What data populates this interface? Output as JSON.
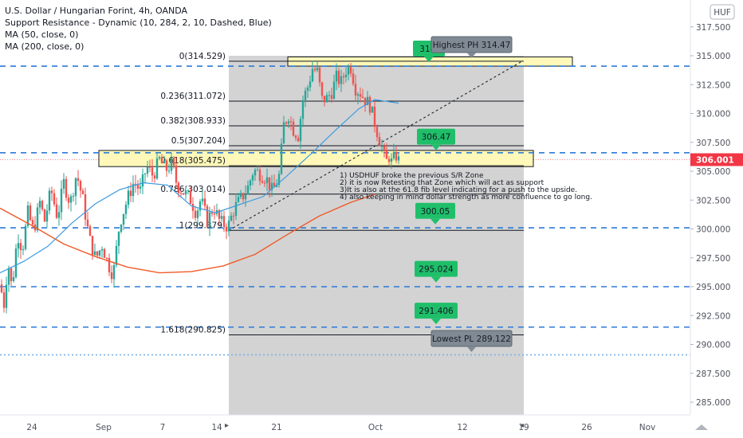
{
  "legend": {
    "title": "U.S. Dollar / Hungarian Forint, 4h, OANDA",
    "indicators": [
      "Support Resistance - Dynamic (10, 284, 2, 10, Dashed, Blue)",
      "MA (50, close, 0)",
      "MA (200, close, 0)"
    ]
  },
  "currency_button": "HUF",
  "price_scale": [
    "317.500",
    "315.000",
    "312.500",
    "310.000",
    "307.500",
    "305.000",
    "302.500",
    "300.000",
    "297.500",
    "295.000",
    "292.500",
    "290.000",
    "287.500",
    "285.000"
  ],
  "time_scale": [
    "24",
    "Sep",
    "7",
    "14",
    "21",
    "Oct",
    "12",
    "19",
    "26",
    "Nov"
  ],
  "current_price": {
    "value": 306.001,
    "label": "306.001",
    "color": "#f23645"
  },
  "colors": {
    "up": "#26a69a",
    "down": "#ef5350",
    "ma50": "#3c9ce0",
    "ma200": "#f05a28",
    "sr": "#2b7bd8",
    "zone": "#fff8b8",
    "range": "#d1d1d1",
    "tag_green": "#1fbf6a",
    "tag_gray": "#808a94"
  },
  "chart_data": {
    "type": "candlestick",
    "symbol": "USDHUF",
    "timeframe": "4h",
    "y_range": [
      284,
      318.5
    ],
    "x_labels": [
      "24",
      "Sep",
      "7",
      "14",
      "21",
      "Oct",
      "12",
      "19",
      "26",
      "Nov"
    ],
    "price_path": [
      [
        0,
        295.2
      ],
      [
        5,
        293.5
      ],
      [
        10,
        297.2
      ],
      [
        15,
        294.8
      ],
      [
        22,
        299.6
      ],
      [
        28,
        298.2
      ],
      [
        35,
        301.4
      ],
      [
        42,
        299.8
      ],
      [
        50,
        302.3
      ],
      [
        56,
        300.7
      ],
      [
        64,
        303.4
      ],
      [
        72,
        301.0
      ],
      [
        80,
        304.0
      ],
      [
        88,
        302.2
      ],
      [
        96,
        304.8
      ],
      [
        104,
        302.5
      ],
      [
        112,
        299.2
      ],
      [
        120,
        297.4
      ],
      [
        128,
        298.6
      ],
      [
        136,
        296.9
      ],
      [
        142,
        296.0
      ],
      [
        150,
        300.5
      ],
      [
        160,
        302.6
      ],
      [
        168,
        304.1
      ],
      [
        176,
        303.3
      ],
      [
        184,
        305.4
      ],
      [
        192,
        304.6
      ],
      [
        200,
        306.0
      ],
      [
        208,
        305.1
      ],
      [
        216,
        305.7
      ],
      [
        222,
        303.8
      ],
      [
        230,
        303.2
      ],
      [
        238,
        302.7
      ],
      [
        246,
        301.4
      ],
      [
        252,
        302.6
      ],
      [
        260,
        300.7
      ],
      [
        268,
        301.9
      ],
      [
        276,
        300.6
      ],
      [
        286,
        300.2
      ],
      [
        294,
        301.8
      ],
      [
        302,
        302.6
      ],
      [
        310,
        303.4
      ],
      [
        318,
        305.1
      ],
      [
        326,
        304.8
      ],
      [
        334,
        304.4
      ],
      [
        342,
        303.2
      ],
      [
        350,
        304.6
      ],
      [
        356,
        309.0
      ],
      [
        362,
        309.9
      ],
      [
        368,
        308.6
      ],
      [
        374,
        308.1
      ],
      [
        380,
        311.2
      ],
      [
        386,
        312.3
      ],
      [
        392,
        313.9
      ],
      [
        398,
        313.6
      ],
      [
        404,
        311.2
      ],
      [
        410,
        311.3
      ],
      [
        416,
        311.9
      ],
      [
        422,
        313.1
      ],
      [
        428,
        312.7
      ],
      [
        434,
        313.8
      ],
      [
        440,
        314.0
      ],
      [
        446,
        312.2
      ],
      [
        452,
        311.8
      ],
      [
        458,
        311.2
      ],
      [
        464,
        310.7
      ],
      [
        470,
        309.2
      ],
      [
        476,
        307.7
      ],
      [
        480,
        306.9
      ],
      [
        484,
        305.7
      ],
      [
        488,
        306.3
      ],
      [
        492,
        305.6
      ],
      [
        496,
        306.5
      ],
      [
        500,
        305.9
      ]
    ],
    "ma50": [
      [
        0,
        296.2
      ],
      [
        30,
        297.2
      ],
      [
        60,
        298.5
      ],
      [
        90,
        300.5
      ],
      [
        120,
        302.2
      ],
      [
        150,
        303.4
      ],
      [
        180,
        304.0
      ],
      [
        210,
        303.8
      ],
      [
        240,
        302.0
      ],
      [
        270,
        301.4
      ],
      [
        300,
        302.1
      ],
      [
        330,
        302.8
      ],
      [
        360,
        304.6
      ],
      [
        390,
        306.5
      ],
      [
        420,
        308.5
      ],
      [
        450,
        310.4
      ],
      [
        470,
        311.2
      ],
      [
        500,
        310.9
      ]
    ],
    "ma200": [
      [
        0,
        301.8
      ],
      [
        40,
        300.3
      ],
      [
        80,
        298.7
      ],
      [
        120,
        297.6
      ],
      [
        160,
        296.7
      ],
      [
        200,
        296.2
      ],
      [
        240,
        296.3
      ],
      [
        280,
        296.8
      ],
      [
        320,
        297.8
      ],
      [
        360,
        299.5
      ],
      [
        400,
        301.1
      ],
      [
        440,
        302.3
      ],
      [
        470,
        303.0
      ]
    ],
    "fibonacci": [
      {
        "ratio": "0",
        "price": 314.529,
        "label": "0(314.529)"
      },
      {
        "ratio": "0.236",
        "price": 311.072,
        "label": "0.236(311.072)"
      },
      {
        "ratio": "0.382",
        "price": 308.933,
        "label": "0.382(308.933)"
      },
      {
        "ratio": "0.5",
        "price": 307.204,
        "label": "0.5(307.204)"
      },
      {
        "ratio": "0.618",
        "price": 305.475,
        "label": "0.618(305.475)"
      },
      {
        "ratio": "0.786",
        "price": 303.014,
        "label": "0.786(303.014)"
      },
      {
        "ratio": "1",
        "price": 299.879,
        "label": "1(299.879)"
      },
      {
        "ratio": "1.618",
        "price": 290.825,
        "label": "1.618(290.825)"
      }
    ],
    "sr_levels": [
      314.1,
      306.6,
      300.1,
      295.0,
      291.5,
      289.1
    ],
    "zones": [
      {
        "low": 314.1,
        "high": 314.9
      },
      {
        "low": 305.4,
        "high": 306.8
      }
    ],
    "targets": [
      {
        "label": "314.",
        "price": 314.5,
        "color": "green"
      },
      {
        "label": "Highest PH 314.47",
        "price": 314.47,
        "color": "gray"
      },
      {
        "label": "306.47",
        "price": 306.47,
        "color": "green"
      },
      {
        "label": "300.05",
        "price": 300.05,
        "color": "green"
      },
      {
        "label": "295.024",
        "price": 295.024,
        "color": "green"
      },
      {
        "label": "291.406",
        "price": 291.406,
        "color": "green"
      },
      {
        "label": "Lowest PL 289.122",
        "price": 289.122,
        "color": "gray"
      }
    ],
    "notes": [
      "1) USDHUF broke the previous S/R Zone",
      "2) it is now Retesting that Zone which will act as support",
      "3)It is also at the 61.8 fib level indicating for a push to the upside.",
      "4) also keeping in mind dollar strength as more confluence to go long."
    ]
  }
}
